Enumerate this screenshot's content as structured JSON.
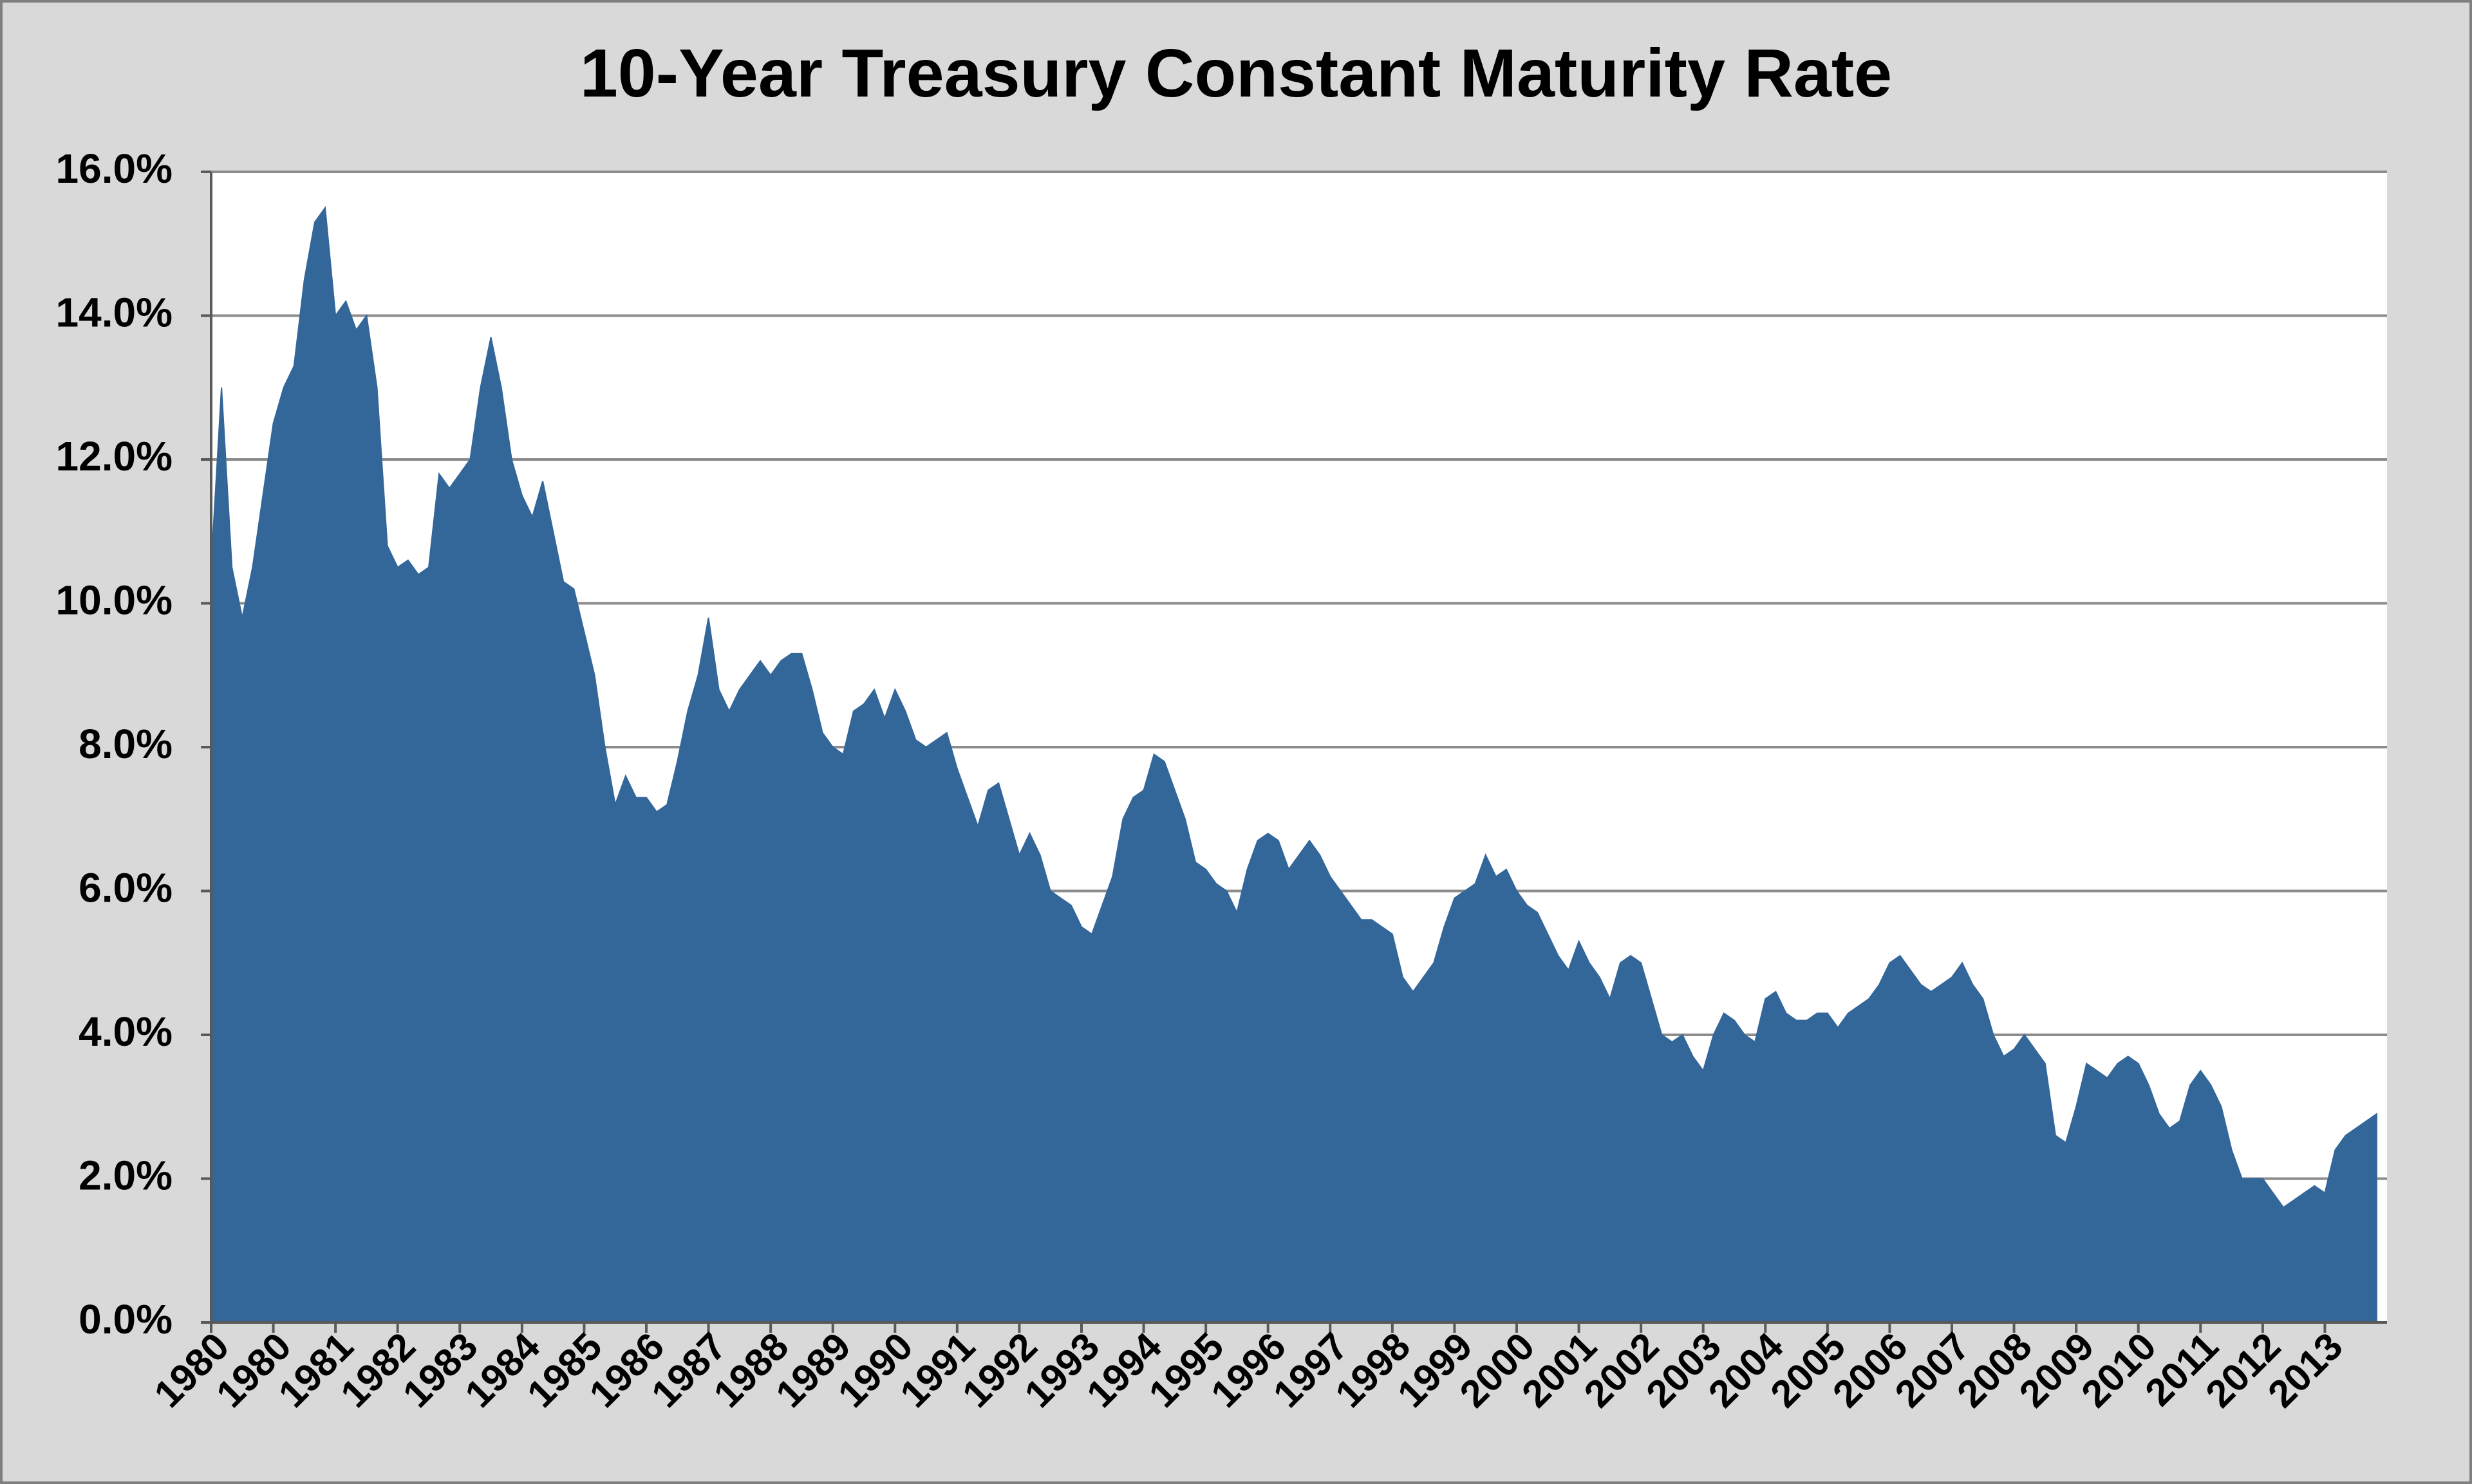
{
  "chart_data": {
    "type": "area",
    "title": "10-Year Treasury Constant Maturity Rate",
    "categories": [
      "1980",
      null,
      null,
      null,
      null,
      null,
      "1980",
      null,
      null,
      null,
      null,
      null,
      "1981",
      null,
      null,
      null,
      null,
      null,
      "1982",
      null,
      null,
      null,
      null,
      null,
      "1983",
      null,
      null,
      null,
      null,
      null,
      "1984",
      null,
      null,
      null,
      null,
      null,
      "1985",
      null,
      null,
      null,
      null,
      null,
      "1986",
      null,
      null,
      null,
      null,
      null,
      "1987",
      null,
      null,
      null,
      null,
      null,
      "1988",
      null,
      null,
      null,
      null,
      null,
      "1989",
      null,
      null,
      null,
      null,
      null,
      "1990",
      null,
      null,
      null,
      null,
      null,
      "1991",
      null,
      null,
      null,
      null,
      null,
      "1992",
      null,
      null,
      null,
      null,
      null,
      "1993",
      null,
      null,
      null,
      null,
      null,
      "1994",
      null,
      null,
      null,
      null,
      null,
      "1995",
      null,
      null,
      null,
      null,
      null,
      "1996",
      null,
      null,
      null,
      null,
      null,
      "1997",
      null,
      null,
      null,
      null,
      null,
      "1998",
      null,
      null,
      null,
      null,
      null,
      "1999",
      null,
      null,
      null,
      null,
      null,
      "2000",
      null,
      null,
      null,
      null,
      null,
      "2001",
      null,
      null,
      null,
      null,
      null,
      "2002",
      null,
      null,
      null,
      null,
      null,
      "2003",
      null,
      null,
      null,
      null,
      null,
      "2004",
      null,
      null,
      null,
      null,
      null,
      "2005",
      null,
      null,
      null,
      null,
      null,
      "2006",
      null,
      null,
      null,
      null,
      null,
      "2007",
      null,
      null,
      null,
      null,
      null,
      "2008",
      null,
      null,
      null,
      null,
      null,
      "2009",
      null,
      null,
      null,
      null,
      null,
      "2010",
      null,
      null,
      null,
      null,
      null,
      "2011",
      null,
      null,
      null,
      null,
      null,
      "2012",
      null,
      null,
      null,
      null,
      null,
      "2013",
      null,
      null,
      null,
      null,
      null
    ],
    "values": [
      10.5,
      13.0,
      10.5,
      9.8,
      10.5,
      11.5,
      12.5,
      13.0,
      13.3,
      14.5,
      15.3,
      15.5,
      14.0,
      14.2,
      13.8,
      14.0,
      13.0,
      10.8,
      10.5,
      10.6,
      10.4,
      10.5,
      11.8,
      11.6,
      11.8,
      12.0,
      13.0,
      13.7,
      13.0,
      12.0,
      11.5,
      11.2,
      11.7,
      11.0,
      10.3,
      10.2,
      9.6,
      9.0,
      8.0,
      7.2,
      7.6,
      7.3,
      7.3,
      7.1,
      7.2,
      7.8,
      8.5,
      9.0,
      9.8,
      8.8,
      8.5,
      8.8,
      9.0,
      9.2,
      9.0,
      9.2,
      9.3,
      9.3,
      8.8,
      8.2,
      8.0,
      7.9,
      8.5,
      8.6,
      8.8,
      8.4,
      8.8,
      8.5,
      8.1,
      8.0,
      8.1,
      8.2,
      7.7,
      7.3,
      6.9,
      7.4,
      7.5,
      7.0,
      6.5,
      6.8,
      6.5,
      6.0,
      5.9,
      5.8,
      5.5,
      5.4,
      5.8,
      6.2,
      7.0,
      7.3,
      7.4,
      7.9,
      7.8,
      7.4,
      7.0,
      6.4,
      6.3,
      6.1,
      6.0,
      5.7,
      6.3,
      6.7,
      6.8,
      6.7,
      6.3,
      6.5,
      6.7,
      6.5,
      6.2,
      6.0,
      5.8,
      5.6,
      5.6,
      5.5,
      5.4,
      4.8,
      4.6,
      4.8,
      5.0,
      5.5,
      5.9,
      6.0,
      6.1,
      6.5,
      6.2,
      6.3,
      6.0,
      5.8,
      5.7,
      5.4,
      5.1,
      4.9,
      5.3,
      5.0,
      4.8,
      4.5,
      5.0,
      5.1,
      5.0,
      4.5,
      4.0,
      3.9,
      4.0,
      3.7,
      3.5,
      4.0,
      4.3,
      4.2,
      4.0,
      3.9,
      4.5,
      4.6,
      4.3,
      4.2,
      4.2,
      4.3,
      4.3,
      4.1,
      4.3,
      4.4,
      4.5,
      4.7,
      5.0,
      5.1,
      4.9,
      4.7,
      4.6,
      4.7,
      4.8,
      5.0,
      4.7,
      4.5,
      4.0,
      3.7,
      3.8,
      4.0,
      3.8,
      3.6,
      2.6,
      2.5,
      3.0,
      3.6,
      3.5,
      3.4,
      3.6,
      3.7,
      3.6,
      3.3,
      2.9,
      2.7,
      2.8,
      3.3,
      3.5,
      3.3,
      3.0,
      2.4,
      2.0,
      2.0,
      2.0,
      1.8,
      1.6,
      1.7,
      1.8,
      1.9,
      1.8,
      2.4,
      2.6,
      2.7,
      2.8,
      2.9
    ],
    "color": "#336699",
    "ylim": [
      0,
      16
    ],
    "yticks": [
      {
        "value": 0,
        "label": "0.0%"
      },
      {
        "value": 2,
        "label": "2.0%"
      },
      {
        "value": 4,
        "label": "4.0%"
      },
      {
        "value": 6,
        "label": "6.0%"
      },
      {
        "value": 8,
        "label": "8.0%"
      },
      {
        "value": 10,
        "label": "10.0%"
      },
      {
        "value": 12,
        "label": "12.0%"
      },
      {
        "value": 14,
        "label": "14.0%"
      },
      {
        "value": 16,
        "label": "16.0%"
      }
    ],
    "grid": true
  }
}
